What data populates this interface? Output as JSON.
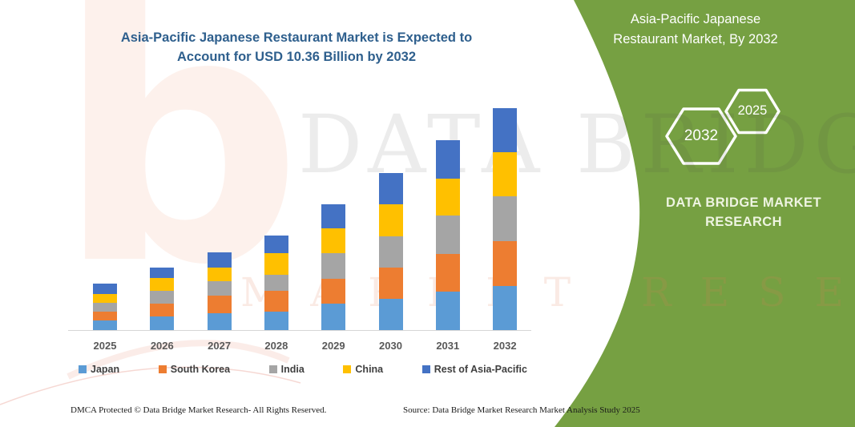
{
  "title": {
    "line1": "Asia-Pacific Japanese Restaurant Market is Expected to",
    "line2": "Account for USD 10.36 Billion by 2032"
  },
  "chart_data": {
    "type": "bar",
    "stacked": true,
    "title": "Asia-Pacific Japanese Restaurant Market is Expected to Account for USD 10.36 Billion by 2032",
    "unit": "USD Billion",
    "categories": [
      "2025",
      "2026",
      "2027",
      "2028",
      "2029",
      "2030",
      "2031",
      "2032"
    ],
    "series": [
      {
        "name": "Japan",
        "color": "#5B9BD5",
        "values": [
          0.44,
          0.63,
          0.79,
          0.85,
          1.22,
          1.47,
          1.81,
          2.06
        ]
      },
      {
        "name": "South Korea",
        "color": "#ED7D31",
        "values": [
          0.41,
          0.6,
          0.81,
          0.97,
          1.19,
          1.46,
          1.75,
          2.08
        ]
      },
      {
        "name": "India",
        "color": "#A5A5A5",
        "values": [
          0.44,
          0.59,
          0.69,
          0.78,
          1.19,
          1.47,
          1.81,
          2.1
        ]
      },
      {
        "name": "China",
        "color": "#FFC000",
        "values": [
          0.41,
          0.6,
          0.65,
          1.0,
          1.16,
          1.5,
          1.71,
          2.06
        ]
      },
      {
        "name": "Rest of Asia-Pacific",
        "color": "#4472C4",
        "values": [
          0.49,
          0.52,
          0.7,
          0.81,
          1.12,
          1.46,
          1.81,
          2.06
        ]
      }
    ],
    "totals": [
      2.19,
      2.94,
      3.64,
      4.41,
      5.88,
      7.36,
      8.89,
      10.36
    ],
    "ylim": [
      0,
      10.36
    ],
    "grid": false,
    "legend_position": "bottom"
  },
  "side_panel": {
    "accent_color": "#76A042",
    "title": "Asia-Pacific Japanese Restaurant Market, By 2032",
    "hex_back": {
      "label": "2032"
    },
    "hex_front": {
      "label": "2025"
    },
    "brand": "DATA BRIDGE MARKET RESEARCH"
  },
  "watermark": {
    "logo_letter": "b",
    "brand_top": "DATA BRIDGE",
    "brand_bottom": "MARKET RESEARCH"
  },
  "footer": {
    "left": "DMCA Protected © Data Bridge Market Research-  All Rights Reserved.",
    "right": "Source: Data Bridge Market Research  Market Analysis Study 2025"
  }
}
